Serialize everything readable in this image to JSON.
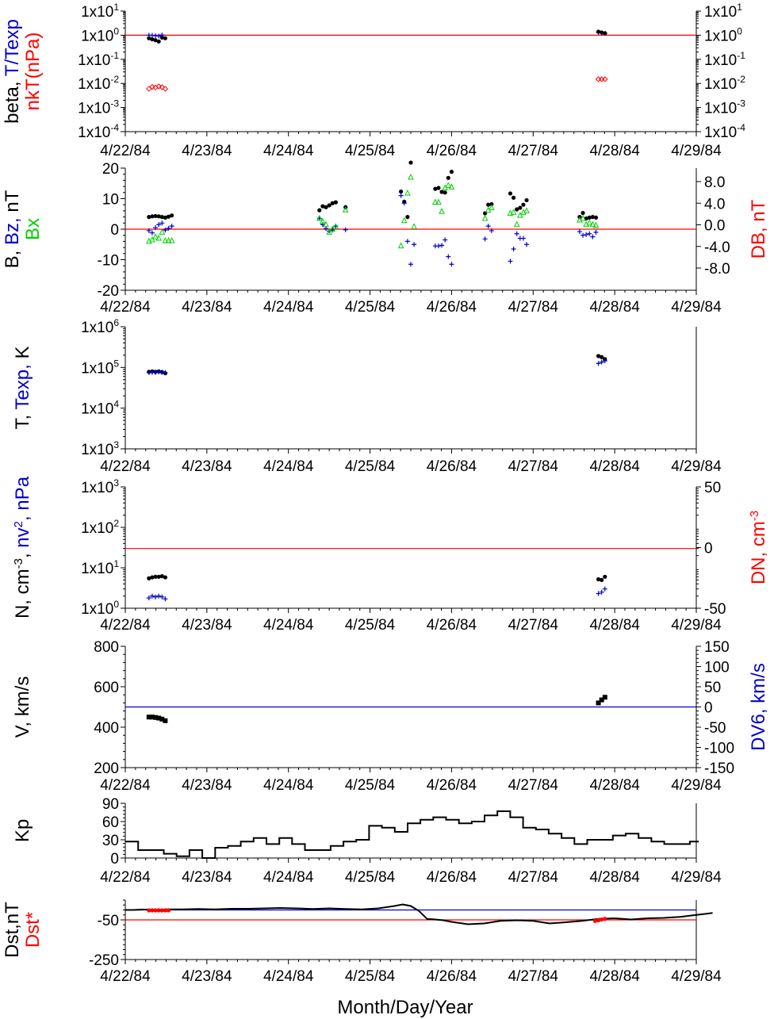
{
  "dates": [
    "4/22/84",
    "4/23/84",
    "4/24/84",
    "4/25/84",
    "4/26/84",
    "4/27/84",
    "4/28/84",
    "4/29/84"
  ],
  "x_axis_title": "Month/Day/Year",
  "colors": {
    "black": "#000000",
    "blue": "#0000cc",
    "red": "#ff0000",
    "green": "#00d000"
  },
  "chart_data": [
    {
      "id": "beta",
      "type": "scatter",
      "yscale": "log",
      "ylim": [
        0.0001,
        10
      ],
      "ticks_left": [
        "1x10^1",
        "1x10^0",
        "1x10^-1",
        "1x10^-2",
        "1x10^-3",
        "1x10^-4"
      ],
      "ticks_right": [
        "1x10^1",
        "1x10^0",
        "1x10^-1",
        "1x10^-2",
        "1x10^-3",
        "1x10^-4"
      ],
      "ylabel_parts": [
        {
          "text": "beta, ",
          "color": "#000000",
          "line": 0
        },
        {
          "text": "T/Texp",
          "color": "#0000cc",
          "line": 0
        },
        {
          "text": "nkT(nPa)",
          "color": "#ff0000",
          "line": 1
        }
      ],
      "ref_line": {
        "value": 1,
        "color": "#ff0000"
      },
      "series": [
        {
          "marker": "dot",
          "color": "#000000",
          "x": [
            0.29,
            0.33,
            0.37,
            0.41,
            0.45,
            0.49
          ],
          "y": [
            0.75,
            0.68,
            0.62,
            0.55,
            0.8,
            0.75
          ]
        },
        {
          "marker": "plus",
          "color": "#0000cc",
          "x": [
            0.29,
            0.33,
            0.37,
            0.41,
            0.45,
            5.8,
            5.84,
            5.88
          ],
          "y": [
            1.0,
            0.98,
            0.95,
            0.92,
            1.02,
            1.3,
            1.25,
            1.2
          ]
        },
        {
          "marker": "diamond",
          "color": "#ff0000",
          "x": [
            0.29,
            0.33,
            0.37,
            0.41,
            0.45,
            0.49,
            5.8,
            5.84,
            5.88
          ],
          "y": [
            0.006,
            0.0072,
            0.0068,
            0.0075,
            0.007,
            0.006,
            0.015,
            0.015,
            0.015
          ]
        },
        {
          "marker": "dot",
          "color": "#000000",
          "x": [
            5.8,
            5.84,
            5.88
          ],
          "y": [
            1.4,
            1.3,
            1.2
          ]
        }
      ]
    },
    {
      "id": "imf",
      "type": "scatter",
      "yscale": "linear",
      "ylim": [
        -20,
        20
      ],
      "ticks_left": [
        "20",
        "10",
        "0",
        "-10",
        "-20"
      ],
      "ticks_right": [
        "8.0",
        "4.0",
        "0.0",
        "-4.0",
        "-8.0"
      ],
      "ylabel_parts": [
        {
          "text": "B, ",
          "color": "#000000",
          "line": 0
        },
        {
          "text": "Bz, ",
          "color": "#0000cc",
          "line": 0
        },
        {
          "text": "nT",
          "color": "#000000",
          "line": 0
        },
        {
          "text": "Bx",
          "color": "#00d000",
          "line": 1
        }
      ],
      "ylabel_right_parts": [
        {
          "text": "DB, nT",
          "color": "#ff0000"
        }
      ],
      "ref_line": {
        "value": 0,
        "color": "#ff0000"
      },
      "series": [
        {
          "marker": "dot",
          "color": "#000000",
          "x": [
            0.29,
            0.33,
            0.37,
            0.41,
            0.45,
            0.49,
            0.53,
            0.57,
            2.38,
            2.42,
            2.46,
            2.5,
            2.54,
            2.58,
            2.7,
            3.38,
            3.42,
            3.46,
            3.5,
            3.8,
            3.84,
            3.88,
            3.92,
            3.96,
            4.0,
            4.41,
            4.45,
            4.49,
            4.72,
            4.76,
            4.8,
            4.84,
            4.88,
            4.92,
            5.57,
            5.61,
            5.65,
            5.69,
            5.73,
            5.77
          ],
          "y": [
            4,
            4.2,
            4.3,
            4.2,
            4.0,
            3.8,
            4.1,
            4.5,
            6.2,
            7.5,
            7.2,
            7.8,
            8.5,
            8.8,
            7.2,
            12.3,
            9.0,
            4.0,
            21.8,
            13.2,
            13.5,
            12.2,
            12.0,
            16.8,
            18.8,
            5.2,
            8.0,
            8.2,
            11.7,
            10.3,
            6.5,
            7.0,
            8.0,
            9.5,
            4.0,
            5.3,
            3.5,
            3.8,
            4.0,
            3.8
          ]
        },
        {
          "marker": "plus",
          "color": "#0000cc",
          "x": [
            0.29,
            0.33,
            0.37,
            0.41,
            0.45,
            0.49,
            0.53,
            0.57,
            2.38,
            2.42,
            2.46,
            2.5,
            2.54,
            2.58,
            2.7,
            3.38,
            3.42,
            3.46,
            3.5,
            3.54,
            3.8,
            3.84,
            3.88,
            3.92,
            3.96,
            4.0,
            4.41,
            4.45,
            4.49,
            4.72,
            4.76,
            4.8,
            4.84,
            4.88,
            4.92,
            5.57,
            5.61,
            5.65,
            5.69,
            5.73,
            5.77
          ],
          "y": [
            -0.5,
            -1.2,
            0.5,
            1.5,
            2.0,
            -0.3,
            0.3,
            1.0,
            3.5,
            1.5,
            0.2,
            -0.6,
            -0.3,
            1.0,
            -0.2,
            11.0,
            8.5,
            -4.0,
            -11.5,
            -5.0,
            -5.5,
            -5.5,
            -5.3,
            -3.5,
            -9.0,
            -11.5,
            -3.2,
            1.0,
            -0.5,
            -10.5,
            -6.5,
            -1.5,
            -3.0,
            -3.0,
            -5.0,
            -0.8,
            -2.0,
            -1.8,
            -1.5,
            -2.5,
            -1.0
          ]
        },
        {
          "marker": "triangle",
          "color": "#00d000",
          "x": [
            0.29,
            0.33,
            0.37,
            0.41,
            0.45,
            0.49,
            0.53,
            0.57,
            2.38,
            2.42,
            2.46,
            2.5,
            2.54,
            2.58,
            2.7,
            3.38,
            3.42,
            3.46,
            3.5,
            3.54,
            3.8,
            3.84,
            3.88,
            3.92,
            3.96,
            4.0,
            4.41,
            4.45,
            4.49,
            4.72,
            4.76,
            4.8,
            4.84,
            4.88,
            4.92,
            5.57,
            5.61,
            5.65,
            5.69,
            5.73,
            5.77
          ],
          "y": [
            -4.0,
            -3.5,
            -2.5,
            -3.0,
            -1.0,
            -3.8,
            -3.8,
            -3.8,
            3.5,
            2.5,
            1.5,
            -1.0,
            0.0,
            0.8,
            6.3,
            -5.5,
            2.8,
            11.8,
            17.0,
            0.8,
            8.8,
            8.8,
            5.8,
            13.5,
            14.3,
            13.8,
            3.5,
            6.2,
            7.0,
            5.2,
            5.5,
            1.5,
            4.5,
            5.5,
            6.0,
            3.0,
            3.5,
            1.5,
            2.0,
            1.5,
            1.2
          ]
        }
      ]
    },
    {
      "id": "temperature",
      "type": "scatter",
      "yscale": "log",
      "ylim": [
        1000,
        1000000
      ],
      "ticks_left": [
        "1x10^6",
        "1x10^5",
        "1x10^4",
        "1x10^3"
      ],
      "ylabel_parts": [
        {
          "text": "T, ",
          "color": "#000000",
          "line": 0
        },
        {
          "text": "Texp, ",
          "color": "#0000cc",
          "line": 0
        },
        {
          "text": "K",
          "color": "#000000",
          "line": 0
        }
      ],
      "series": [
        {
          "marker": "dot",
          "color": "#000000",
          "x": [
            0.29,
            0.33,
            0.37,
            0.41,
            0.45,
            0.49,
            5.8,
            5.84,
            5.88
          ],
          "y": [
            78000,
            80000,
            78000,
            80000,
            77000,
            72000,
            190000,
            180000,
            160000
          ]
        },
        {
          "marker": "plus",
          "color": "#0000cc",
          "x": [
            0.29,
            0.33,
            0.37,
            0.41,
            0.45,
            0.49,
            5.8,
            5.84,
            5.88
          ],
          "y": [
            75000,
            76000,
            76000,
            78000,
            76000,
            74000,
            125000,
            135000,
            145000
          ]
        }
      ]
    },
    {
      "id": "density",
      "type": "scatter",
      "yscale": "log",
      "ylim": [
        1,
        1000
      ],
      "ticks_left": [
        "1x10^3",
        "1x10^2",
        "1x10^1",
        "1x10^0"
      ],
      "ticks_right": [
        "50",
        "0",
        "-50"
      ],
      "ylabel_parts": [
        {
          "text": "N, cm",
          "color": "#000000",
          "line": 0
        },
        {
          "text": "-3",
          "color": "#000000",
          "line": 0,
          "sup": true
        },
        {
          "text": ", ",
          "color": "#000000",
          "line": 0
        },
        {
          "text": "nv",
          "color": "#0000cc",
          "line": 0
        },
        {
          "text": "2",
          "color": "#0000cc",
          "line": 0,
          "sup": true
        },
        {
          "text": ", nPa",
          "color": "#0000cc",
          "line": 0
        }
      ],
      "ylabel_right_parts": [
        {
          "text": "DN, cm",
          "color": "#ff0000"
        },
        {
          "text": "-3",
          "color": "#ff0000",
          "sup": true
        }
      ],
      "ref_line": {
        "value": 30,
        "color": "#ff0000"
      },
      "series": [
        {
          "marker": "dot",
          "color": "#000000",
          "x": [
            0.29,
            0.33,
            0.37,
            0.41,
            0.45,
            0.49,
            5.8,
            5.84,
            5.88
          ],
          "y": [
            5.5,
            5.8,
            6.0,
            6.0,
            6.2,
            5.8,
            5.2,
            5.0,
            6.0
          ]
        },
        {
          "marker": "plus",
          "color": "#0000cc",
          "x": [
            0.29,
            0.33,
            0.37,
            0.41,
            0.45,
            0.49,
            5.8,
            5.84,
            5.88
          ],
          "y": [
            1.8,
            2.0,
            1.9,
            2.0,
            1.9,
            1.7,
            2.3,
            2.5,
            3.0
          ]
        }
      ]
    },
    {
      "id": "velocity",
      "type": "scatter",
      "yscale": "linear",
      "ylim": [
        200,
        800
      ],
      "ticks_left": [
        "800",
        "600",
        "400",
        "200"
      ],
      "ticks_right": [
        "150",
        "100",
        "50",
        "0",
        "-50",
        "-100",
        "-150"
      ],
      "ylabel_parts": [
        {
          "text": "V, km/s",
          "color": "#000000",
          "line": 0
        }
      ],
      "ylabel_right_parts": [
        {
          "text": "DV6, km/s",
          "color": "#0000cc"
        }
      ],
      "ref_line": {
        "value": 500,
        "color": "#0000cc"
      },
      "series": [
        {
          "marker": "square",
          "color": "#000000",
          "x": [
            0.29,
            0.33,
            0.37,
            0.41,
            0.45,
            0.49,
            5.8,
            5.84,
            5.88
          ],
          "y": [
            450,
            450,
            448,
            445,
            440,
            432,
            520,
            535,
            548
          ]
        }
      ]
    },
    {
      "id": "kp",
      "type": "line",
      "yscale": "linear",
      "ylim": [
        0,
        90
      ],
      "ticks_left": [
        "90",
        "60",
        "30",
        "0"
      ],
      "ylabel_parts": [
        {
          "text": "Kp",
          "color": "#000000",
          "line": 0
        }
      ],
      "series": [
        {
          "color": "#000000",
          "values": [
            27,
            13,
            13,
            7,
            3,
            13,
            0,
            17,
            20,
            27,
            33,
            23,
            33,
            23,
            13,
            13,
            20,
            27,
            30,
            53,
            50,
            43,
            57,
            63,
            67,
            63,
            57,
            60,
            70,
            77,
            67,
            50,
            47,
            40,
            33,
            23,
            30,
            30,
            37,
            40,
            33,
            27,
            23,
            23,
            27
          ]
        }
      ]
    },
    {
      "id": "dst",
      "type": "line",
      "yscale": "linear",
      "ylim": [
        -250,
        50
      ],
      "ticks_left": [
        "-50",
        "-250"
      ],
      "ylabel_parts": [
        {
          "text": "Dst,nT",
          "color": "#000000",
          "line": 0
        },
        {
          "text": "Dst*",
          "color": "#ff0000",
          "line": 1
        }
      ],
      "ref_lines": [
        {
          "value": 0,
          "color": "#0000cc"
        },
        {
          "value": -50,
          "color": "#ff0000"
        }
      ],
      "series": [
        {
          "color": "#000000",
          "x": [
            0.0,
            0.1,
            0.2,
            0.3,
            0.4,
            0.5,
            0.7,
            0.9,
            1.1,
            1.3,
            1.5,
            1.7,
            1.9,
            2.1,
            2.3,
            2.5,
            2.7,
            2.9,
            3.1,
            3.3,
            3.4,
            3.5,
            3.6,
            3.7,
            3.8,
            3.9,
            4.0,
            4.2,
            4.4,
            4.6,
            4.8,
            5.0,
            5.2,
            5.4,
            5.6,
            5.8,
            6.0,
            6.2,
            6.4,
            6.6,
            6.8,
            7.0,
            7.2
          ],
          "y": [
            0,
            0,
            2,
            2,
            0,
            3,
            3,
            5,
            3,
            6,
            6,
            8,
            10,
            8,
            5,
            8,
            5,
            3,
            8,
            20,
            28,
            20,
            -5,
            -45,
            -48,
            -52,
            -60,
            -72,
            -68,
            -55,
            -52,
            -55,
            -68,
            -62,
            -55,
            -45,
            -42,
            -48,
            -42,
            -40,
            -35,
            -25,
            -15
          ]
        },
        {
          "marker": "dot",
          "color": "#ff0000",
          "x": [
            0.29,
            0.33,
            0.37,
            0.41,
            0.45,
            0.49,
            0.53,
            5.76,
            5.8,
            5.84,
            5.88
          ],
          "y": [
            -2,
            -2,
            -2,
            -2,
            -2,
            -2,
            -2,
            -55,
            -52,
            -48,
            -45
          ]
        }
      ]
    }
  ]
}
